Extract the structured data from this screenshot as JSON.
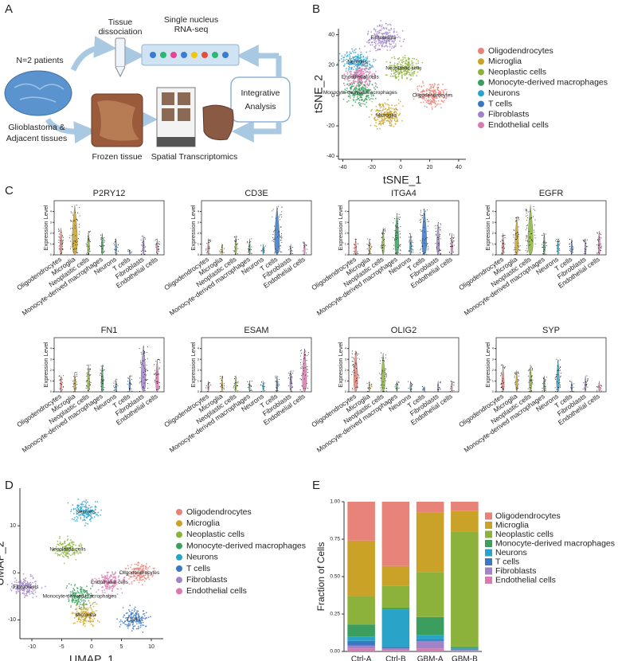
{
  "panel_labels": [
    "A",
    "B",
    "C",
    "D",
    "E"
  ],
  "workflow": {
    "patients": "N=2 patients",
    "tissue": [
      "Glioblastoma &",
      "Adjacent tissues"
    ],
    "dissociation": [
      "Tissue",
      "dissociation"
    ],
    "rnaseq": [
      "Single nucleus",
      "RNA-seq"
    ],
    "analysis": [
      "Integrative",
      "Analysis"
    ],
    "frozen": "Frozen tissue",
    "spatial": "Spatial Transcriptomics"
  },
  "chart_data": [
    {
      "type": "scatter",
      "xlabel": "tSNE_1",
      "ylabel": "tSNE_2",
      "xlim": [
        -43,
        45
      ],
      "ylim": [
        -42,
        44
      ],
      "xticks": [
        -40,
        -20,
        0,
        20,
        40
      ],
      "yticks": [
        -40,
        -20,
        0,
        20,
        40
      ],
      "series": [
        {
          "name": "Oligodendrocytes",
          "color": "#e8837a"
        },
        {
          "name": "Microglia",
          "color": "#c9a227"
        },
        {
          "name": "Neoplastic cells",
          "color": "#8db23c"
        },
        {
          "name": "Monocyte-derived macrophages",
          "color": "#3b9e5e"
        },
        {
          "name": "Neurons",
          "color": "#2aa3c9"
        },
        {
          "name": "T cells",
          "color": "#3a78c4"
        },
        {
          "name": "Fibroblasts",
          "color": "#a184c8"
        },
        {
          "name": "Endothelial cells",
          "color": "#d97bb0"
        }
      ],
      "annotations": [
        {
          "text": "Fibroblasts",
          "x": -12,
          "y": 38
        },
        {
          "text": "Neurons",
          "x": -30,
          "y": 22
        },
        {
          "text": "Neoplastic cells",
          "x": 2,
          "y": 18
        },
        {
          "text": "Endothelial cells",
          "x": -28,
          "y": 12
        },
        {
          "text": "Monocyte-derived macrophages",
          "x": -28,
          "y": 2
        },
        {
          "text": "Microglia",
          "x": -10,
          "y": -13
        },
        {
          "text": "Oligodendrocytes",
          "x": 22,
          "y": 0
        }
      ]
    },
    {
      "type": "violin",
      "ylabel": "Expression Level",
      "categories": [
        "Oligodendrocytes",
        "Microglia",
        "Neoplastic cells",
        "Monocyte-derived macrophages",
        "Neurons",
        "T cells",
        "Fibroblasts",
        "Endothelial cells"
      ],
      "colors": [
        "#e8837a",
        "#c9a227",
        "#8db23c",
        "#3b9e5e",
        "#2aa3c9",
        "#3a78c4",
        "#a184c8",
        "#d97bb0"
      ],
      "ylim": [
        0,
        5
      ],
      "yticks": [
        0,
        1,
        2,
        3,
        4
      ],
      "panels": [
        {
          "title": "P2RY12",
          "values": [
            2.5,
            4.6,
            2.2,
            2.0,
            1.5,
            0.5,
            1.8,
            1.5
          ]
        },
        {
          "title": "CD3E",
          "values": [
            1.5,
            1.0,
            1.8,
            1.5,
            1.0,
            4.5,
            1.0,
            1.2
          ]
        },
        {
          "title": "ITGA4",
          "values": [
            1.5,
            1.5,
            2.5,
            3.8,
            2.0,
            4.3,
            3.0,
            2.0
          ]
        },
        {
          "title": "EGFR",
          "values": [
            2.0,
            3.5,
            4.6,
            2.0,
            1.5,
            1.5,
            1.5,
            2.2
          ]
        },
        {
          "title": "FN1",
          "values": [
            1.5,
            1.8,
            2.5,
            2.5,
            1.2,
            1.5,
            4.3,
            3.0
          ]
        },
        {
          "title": "ESAM",
          "values": [
            1.0,
            1.5,
            1.5,
            1.0,
            1.0,
            1.5,
            2.0,
            4.0
          ]
        },
        {
          "title": "OLIG2",
          "values": [
            3.8,
            1.0,
            3.6,
            1.0,
            1.0,
            0.5,
            1.0,
            1.0
          ]
        },
        {
          "title": "SYP",
          "values": [
            2.5,
            2.0,
            2.5,
            1.5,
            3.0,
            1.0,
            1.5,
            1.0
          ]
        }
      ]
    },
    {
      "type": "scatter",
      "xlabel": "UMAP_1",
      "ylabel": "UMAP_2",
      "xlim": [
        -12,
        12
      ],
      "ylim": [
        -14,
        18
      ],
      "xticks": [
        -10,
        -5,
        0,
        5,
        10
      ],
      "yticks": [
        -10,
        0,
        10
      ],
      "series": [
        {
          "name": "Oligodendrocytes",
          "color": "#e8837a"
        },
        {
          "name": "Microglia",
          "color": "#c9a227"
        },
        {
          "name": "Neoplastic cells",
          "color": "#8db23c"
        },
        {
          "name": "Monocyte-derived macrophages",
          "color": "#3b9e5e"
        },
        {
          "name": "Neurons",
          "color": "#2aa3c9"
        },
        {
          "name": "T cells",
          "color": "#3a78c4"
        },
        {
          "name": "Fibroblasts",
          "color": "#a184c8"
        },
        {
          "name": "Endothelial cells",
          "color": "#d97bb0"
        }
      ],
      "annotations": [
        {
          "text": "Neurons",
          "x": -1,
          "y": 13
        },
        {
          "text": "Neoplastic cells",
          "x": -4,
          "y": 5
        },
        {
          "text": "Oligodendrocytes",
          "x": 8,
          "y": 0
        },
        {
          "text": "Fibroblasts",
          "x": -11,
          "y": -3
        },
        {
          "text": "Endothelial cells",
          "x": 3,
          "y": -2
        },
        {
          "text": "Monocyte-derived macrophages",
          "x": -2,
          "y": -5
        },
        {
          "text": "Microglia",
          "x": -1,
          "y": -9
        },
        {
          "text": "T cells",
          "x": 7,
          "y": -10
        }
      ]
    },
    {
      "type": "stacked_bar",
      "ylabel": "Fraction of Cells",
      "categories": [
        "Ctrl-A",
        "Ctrl-B",
        "GBM-A",
        "GBM-B"
      ],
      "ylim": [
        0,
        1
      ],
      "yticks": [
        {
          "value": 0,
          "label": "0.00"
        },
        {
          "value": 0.25,
          "label": "0.25"
        },
        {
          "value": 0.5,
          "label": "0.50"
        },
        {
          "value": 0.75,
          "label": "0.75"
        },
        {
          "value": 1,
          "label": "1.00"
        }
      ],
      "series": [
        {
          "name": "Oligodendrocytes",
          "color": "#e8837a",
          "values": [
            0.26,
            0.43,
            0.07,
            0.06
          ]
        },
        {
          "name": "Microglia",
          "color": "#c9a227",
          "values": [
            0.37,
            0.13,
            0.4,
            0.14
          ]
        },
        {
          "name": "Neoplastic cells",
          "color": "#8db23c",
          "values": [
            0.19,
            0.15,
            0.3,
            0.77
          ]
        },
        {
          "name": "Monocyte-derived macrophages",
          "color": "#3b9e5e",
          "values": [
            0.08,
            0.01,
            0.12,
            0.01
          ]
        },
        {
          "name": "Neurons",
          "color": "#2aa3c9",
          "values": [
            0.03,
            0.25,
            0.03,
            0.005
          ]
        },
        {
          "name": "T cells",
          "color": "#3a78c4",
          "values": [
            0.03,
            0.01,
            0.01,
            0.005
          ]
        },
        {
          "name": "Fibroblasts",
          "color": "#a184c8",
          "values": [
            0.02,
            0.01,
            0.05,
            0.005
          ]
        },
        {
          "name": "Endothelial cells",
          "color": "#d97bb0",
          "values": [
            0.02,
            0.01,
            0.02,
            0.005
          ]
        }
      ]
    }
  ]
}
